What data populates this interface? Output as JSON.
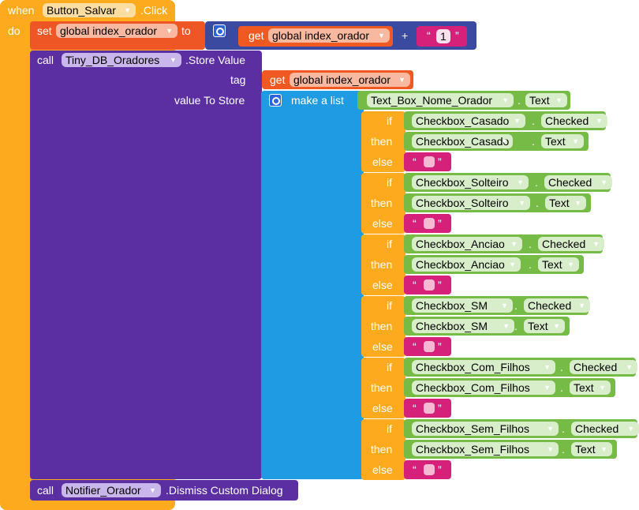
{
  "event": {
    "when": "when",
    "component": "Button_Salvar",
    "event_name": ".Click",
    "do": "do"
  },
  "set_block": {
    "set": "set",
    "variable": "global index_orador",
    "to": "to",
    "get": "get",
    "get_variable": "global index_orador",
    "plus": "+",
    "open_quote": "“",
    "number": "1",
    "close_quote": "”"
  },
  "store_call": {
    "call": "call",
    "component": "Tiny_DB_Oradores",
    "method": ".Store Value",
    "tag_label": "tag",
    "tag_get": "get",
    "tag_variable": "global index_orador",
    "value_label": "value To Store",
    "make_list": "make a list",
    "first_item": {
      "component": "Text_Box_Nome_Orador",
      "dot": ".",
      "property": "Text"
    }
  },
  "if_labels": {
    "if": "if",
    "then": "then",
    "else": "else",
    "open_quote": "“",
    "close_quote": "”",
    "dot": "."
  },
  "conditions": [
    {
      "checkbox": "Checkbox_Casado",
      "cond_prop": "Checked",
      "then_prop": "Text"
    },
    {
      "checkbox": "Checkbox_Solteiro",
      "cond_prop": "Checked",
      "then_prop": "Text"
    },
    {
      "checkbox": "Checkbox_Anciao",
      "cond_prop": "Checked",
      "then_prop": "Text"
    },
    {
      "checkbox": "Checkbox_SM",
      "cond_prop": "Checked",
      "then_prop": "Text"
    },
    {
      "checkbox": "Checkbox_Com_Filhos",
      "cond_prop": "Checked",
      "then_prop": "Text"
    },
    {
      "checkbox": "Checkbox_Sem_Filhos",
      "cond_prop": "Checked",
      "then_prop": "Text"
    }
  ],
  "dismiss_call": {
    "call": "call",
    "component": "Notifier_Orador",
    "method": ".Dismiss Custom Dialog"
  },
  "colors": {
    "event": "#FDAA1F",
    "variables": "#EE5626",
    "math": "#3A4AA0",
    "component_call": "#5B2FA2",
    "lists": "#1F9BE3",
    "component_property": "#76BB45",
    "text": "#D6217B"
  },
  "icons": {
    "mutator": "gear-icon",
    "dropdown": "dropdown-arrow-icon"
  }
}
